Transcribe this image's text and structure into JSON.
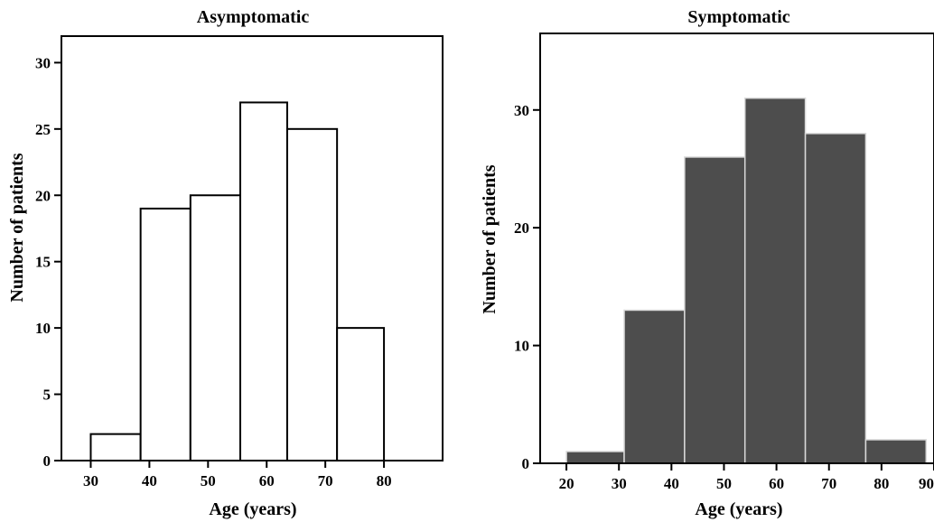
{
  "chart_data": [
    {
      "type": "bar",
      "title": "Asymptomatic",
      "xlabel": "Age (years)",
      "ylabel": "Number of patients",
      "bins": [
        {
          "start": 30,
          "end": 38.5,
          "value": 2
        },
        {
          "start": 38.5,
          "end": 47,
          "value": 19
        },
        {
          "start": 47,
          "end": 55.5,
          "value": 20
        },
        {
          "start": 55.5,
          "end": 63.5,
          "value": 27
        },
        {
          "start": 63.5,
          "end": 72,
          "value": 25
        },
        {
          "start": 72,
          "end": 80,
          "value": 10
        }
      ],
      "xlim": [
        25,
        90
      ],
      "ylim": [
        0,
        32
      ],
      "xticks": [
        30,
        40,
        50,
        60,
        70,
        80
      ],
      "yticks": [
        0,
        5,
        10,
        15,
        20,
        25,
        30
      ],
      "bar_fill": "#ffffff",
      "bar_stroke": "#000000",
      "grid": false
    },
    {
      "type": "bar",
      "title": "Symptomatic",
      "xlabel": "Age (years)",
      "ylabel": "Number of patients",
      "bins": [
        {
          "start": 20,
          "end": 31,
          "value": 1
        },
        {
          "start": 31,
          "end": 42.5,
          "value": 13
        },
        {
          "start": 42.5,
          "end": 54,
          "value": 26
        },
        {
          "start": 54,
          "end": 65.5,
          "value": 31
        },
        {
          "start": 65.5,
          "end": 77,
          "value": 28
        },
        {
          "start": 77,
          "end": 88.5,
          "value": 2
        }
      ],
      "xlim": [
        15,
        90
      ],
      "ylim": [
        0,
        36.5
      ],
      "xticks": [
        20,
        30,
        40,
        50,
        60,
        70,
        80,
        90
      ],
      "yticks": [
        0,
        10,
        20,
        30
      ],
      "bar_fill": "#4d4d4d",
      "bar_stroke": "#d9d9d9",
      "grid": false
    }
  ]
}
